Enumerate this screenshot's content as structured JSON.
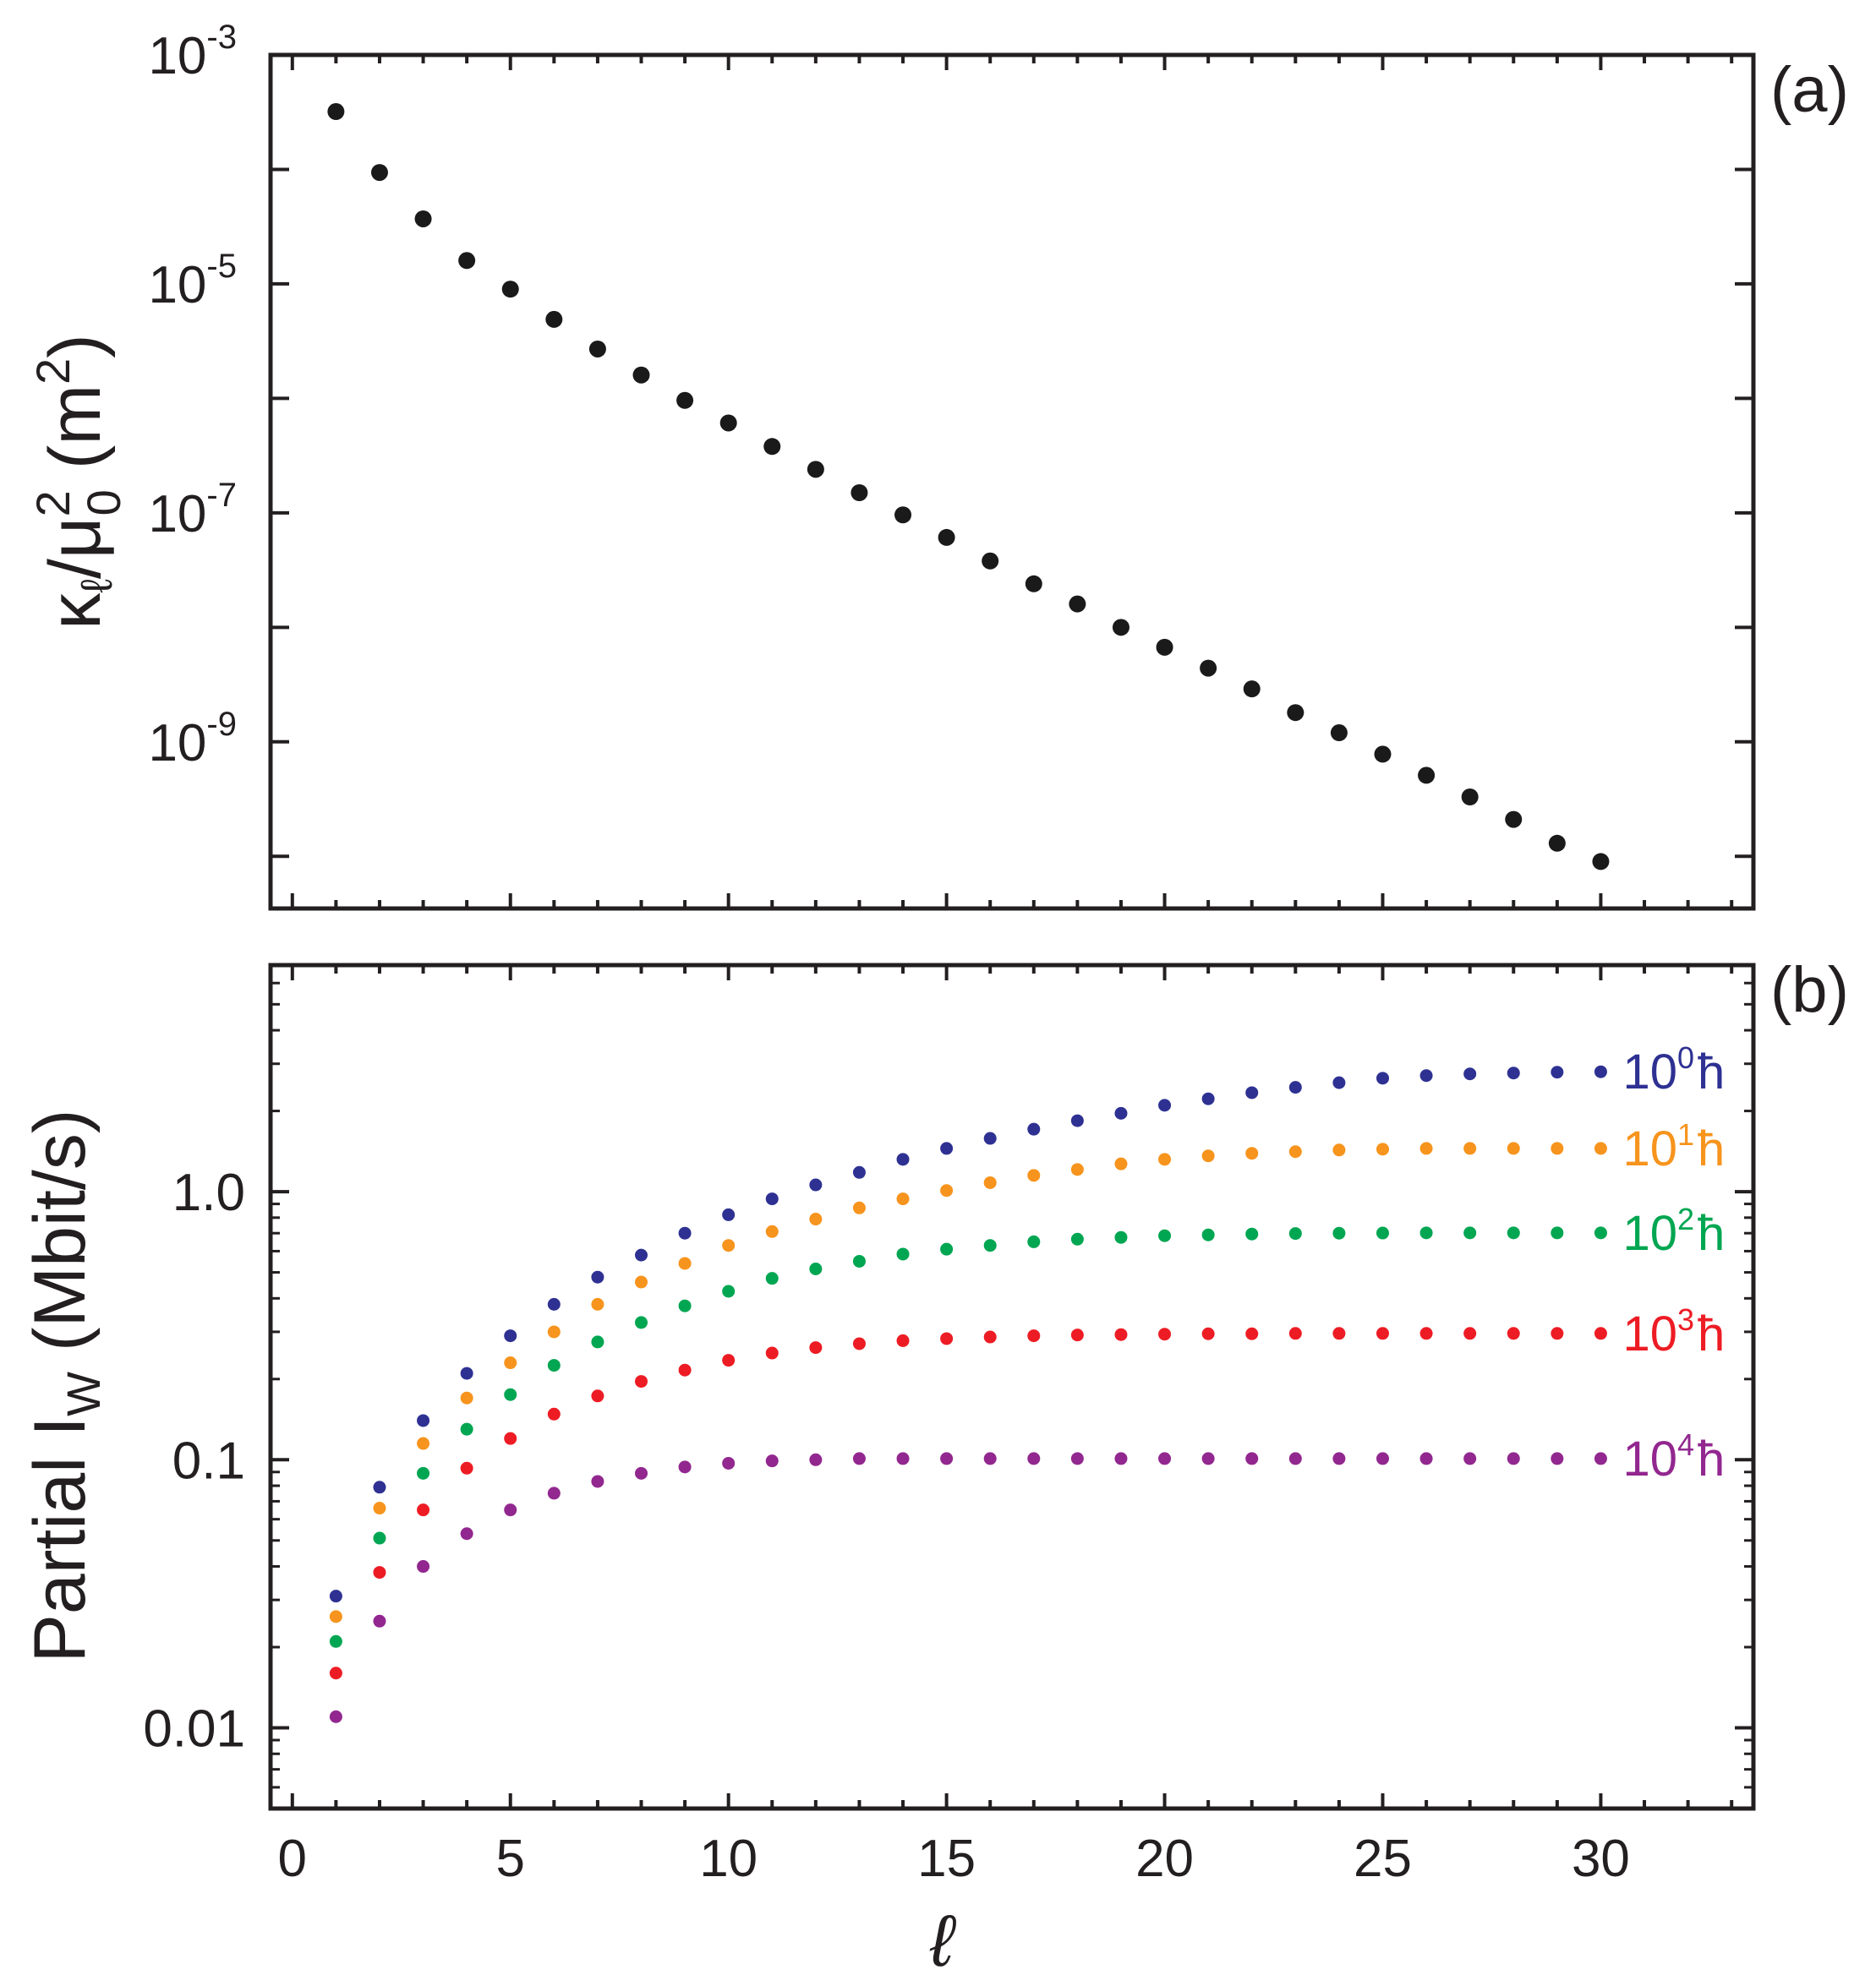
{
  "chart_data": [
    {
      "panel_label": "(a)",
      "type": "scatter",
      "yscale": "log",
      "ylabel": "κℓ/μ0² (m²)",
      "ylabel_parts": {
        "main": "κ",
        "sub1": "ℓ",
        "mid": "/μ",
        "sup": "2",
        "sub2": "0",
        "unit": "(m",
        "unit_sup": "2",
        "unit_close": ")"
      },
      "xlim": [
        -0.5,
        33.5
      ],
      "ylim": [
        3.5e-11,
        0.001
      ],
      "xticks": [
        0,
        5,
        10,
        15,
        20,
        25,
        30
      ],
      "yticks": [
        {
          "base": "10",
          "exp": "-3",
          "value": 0.001
        },
        {
          "base": "10",
          "exp": "-5",
          "value": 1e-05
        },
        {
          "base": "10",
          "exp": "-7",
          "value": 1e-07
        },
        {
          "base": "10",
          "exp": "-9",
          "value": 1e-09
        }
      ],
      "color": "#1a1a1a",
      "x": [
        1,
        2,
        3,
        4,
        5,
        6,
        7,
        8,
        9,
        10,
        11,
        12,
        13,
        14,
        15,
        16,
        17,
        18,
        19,
        20,
        21,
        22,
        23,
        24,
        25,
        26,
        27,
        28,
        29,
        30
      ],
      "y": [
        0.00032,
        9.4e-05,
        3.7e-05,
        1.6e-05,
        9e-06,
        4.9e-06,
        2.7e-06,
        1.6e-06,
        9.6e-07,
        6.1e-07,
        3.8e-07,
        2.4e-07,
        1.5e-07,
        9.6e-08,
        6.1e-08,
        3.8e-08,
        2.4e-08,
        1.6e-08,
        1e-08,
        6.7e-09,
        4.4e-09,
        2.9e-09,
        1.8e-09,
        1.2e-09,
        7.8e-10,
        5.1e-10,
        3.3e-10,
        2.1e-10,
        1.3e-10,
        9e-11
      ]
    },
    {
      "panel_label": "(b)",
      "type": "scatter",
      "yscale": "log",
      "ylabel": "Partial I_W (Mbit/s)",
      "ylabel_parts": {
        "main": "Partial I",
        "sub": "W",
        "unit": " (Mbit/s)"
      },
      "xlabel": "ℓ",
      "xlim": [
        -0.5,
        33.5
      ],
      "ylim": [
        0.005,
        7
      ],
      "xticks": [
        0,
        5,
        10,
        15,
        20,
        25,
        30
      ],
      "yticks": [
        {
          "label": "0.01",
          "value": 0.01
        },
        {
          "label": "0.1",
          "value": 0.1
        },
        {
          "label": "1.0",
          "value": 1.0
        }
      ],
      "x": [
        1,
        2,
        3,
        4,
        5,
        6,
        7,
        8,
        9,
        10,
        11,
        12,
        13,
        14,
        15,
        16,
        17,
        18,
        19,
        20,
        21,
        22,
        23,
        24,
        25,
        26,
        27,
        28,
        29,
        30
      ],
      "series": [
        {
          "name": "10^0 ħ",
          "base": "10",
          "exp": "0",
          "unit": "ħ",
          "color": "#2e3192",
          "values": [
            0.031,
            0.079,
            0.14,
            0.21,
            0.29,
            0.38,
            0.48,
            0.58,
            0.7,
            0.82,
            0.94,
            1.06,
            1.18,
            1.32,
            1.45,
            1.58,
            1.71,
            1.84,
            1.96,
            2.1,
            2.22,
            2.34,
            2.45,
            2.55,
            2.65,
            2.71,
            2.75,
            2.77,
            2.79,
            2.8
          ]
        },
        {
          "name": "10^1 ħ",
          "base": "10",
          "exp": "1",
          "unit": "ħ",
          "color": "#f7941d",
          "values": [
            0.026,
            0.066,
            0.115,
            0.17,
            0.23,
            0.3,
            0.38,
            0.46,
            0.54,
            0.63,
            0.71,
            0.79,
            0.87,
            0.94,
            1.01,
            1.08,
            1.15,
            1.21,
            1.27,
            1.32,
            1.36,
            1.39,
            1.41,
            1.43,
            1.44,
            1.45,
            1.45,
            1.45,
            1.45,
            1.45
          ]
        },
        {
          "name": "10^2 ħ",
          "base": "10",
          "exp": "2",
          "unit": "ħ",
          "color": "#00a651",
          "values": [
            0.021,
            0.051,
            0.089,
            0.13,
            0.175,
            0.225,
            0.275,
            0.325,
            0.375,
            0.425,
            0.475,
            0.515,
            0.55,
            0.585,
            0.61,
            0.63,
            0.65,
            0.665,
            0.675,
            0.685,
            0.69,
            0.695,
            0.698,
            0.7,
            0.701,
            0.702,
            0.702,
            0.702,
            0.702,
            0.702
          ]
        },
        {
          "name": "10^3 ħ",
          "base": "10",
          "exp": "3",
          "unit": "ħ",
          "color": "#ed1c24",
          "values": [
            0.016,
            0.038,
            0.065,
            0.093,
            0.12,
            0.148,
            0.173,
            0.196,
            0.216,
            0.235,
            0.25,
            0.262,
            0.271,
            0.278,
            0.283,
            0.287,
            0.29,
            0.292,
            0.293,
            0.294,
            0.295,
            0.295,
            0.296,
            0.296,
            0.296,
            0.296,
            0.296,
            0.296,
            0.296,
            0.296
          ]
        },
        {
          "name": "10^4 ħ",
          "base": "10",
          "exp": "4",
          "unit": "ħ",
          "color": "#92278f",
          "values": [
            0.011,
            0.025,
            0.04,
            0.053,
            0.065,
            0.075,
            0.083,
            0.089,
            0.094,
            0.097,
            0.099,
            0.1,
            0.101,
            0.101,
            0.101,
            0.101,
            0.101,
            0.101,
            0.101,
            0.101,
            0.101,
            0.101,
            0.101,
            0.101,
            0.101,
            0.101,
            0.101,
            0.101,
            0.101,
            0.101
          ]
        }
      ]
    }
  ]
}
